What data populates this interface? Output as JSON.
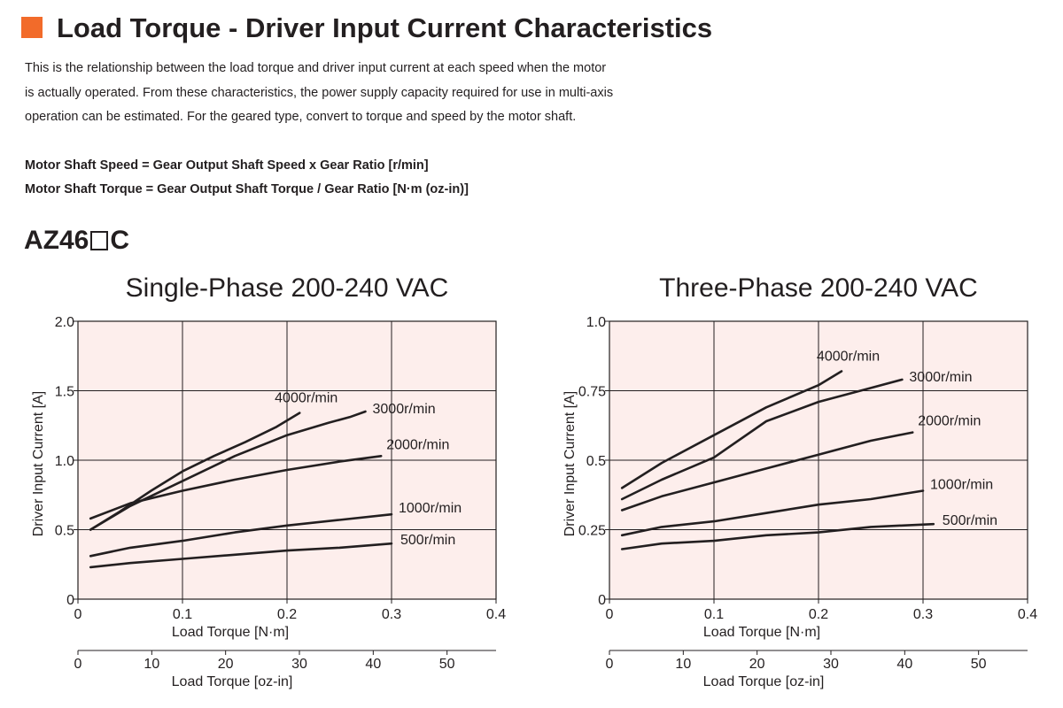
{
  "section": {
    "title": "Load Torque - Driver Input Current Characteristics",
    "accent_color": "#f26b2a"
  },
  "intro": {
    "lines": [
      "This is the relationship between the load torque and driver input current at each speed when the motor",
      "is actually operated. From these characteristics, the power supply capacity required for use in multi-axis",
      "operation can be estimated. For the geared type, convert to torque and speed by the motor shaft."
    ]
  },
  "formulas": [
    "Motor Shaft Speed = Gear Output Shaft Speed x Gear Ratio [r/min]",
    "Motor Shaft Torque = Gear Output Shaft Torque / Gear Ratio [N·m (oz-in)]"
  ],
  "model": {
    "prefix": "AZ46",
    "suffix": "C"
  },
  "colors": {
    "plot_background": "#fdeeec",
    "line": "#231f20"
  },
  "chart_data": [
    {
      "type": "line",
      "title": "Single-Phase 200-240 VAC",
      "xlabel": "Load Torque [N·m]",
      "ylabel": "Driver Input Current [A]",
      "xlim": [
        0,
        0.4
      ],
      "ylim": [
        0,
        2.0
      ],
      "xticks": [
        "0",
        "0.1",
        "0.2",
        "0.3",
        "0.4"
      ],
      "yticks": [
        "0",
        "0.5",
        "1.0",
        "1.5",
        "2.0"
      ],
      "secondary_xlabel": "Load Torque [oz-in]",
      "secondary_xlim": [
        0,
        56.64
      ],
      "secondary_xticks": [
        "0",
        "10",
        "20",
        "30",
        "40",
        "50"
      ],
      "grid": true,
      "legend": "inline labels at line ends",
      "series": [
        {
          "name": "4000r/min",
          "x": [
            0.012,
            0.04,
            0.07,
            0.1,
            0.13,
            0.16,
            0.19,
            0.212
          ],
          "y": [
            0.5,
            0.63,
            0.78,
            0.92,
            1.03,
            1.13,
            1.24,
            1.34
          ]
        },
        {
          "name": "3000r/min",
          "x": [
            0.012,
            0.05,
            0.1,
            0.15,
            0.2,
            0.24,
            0.26,
            0.275
          ],
          "y": [
            0.5,
            0.67,
            0.85,
            1.03,
            1.18,
            1.27,
            1.31,
            1.35
          ]
        },
        {
          "name": "2000r/min",
          "x": [
            0.012,
            0.05,
            0.1,
            0.15,
            0.2,
            0.25,
            0.29
          ],
          "y": [
            0.58,
            0.69,
            0.78,
            0.86,
            0.93,
            0.99,
            1.03
          ]
        },
        {
          "name": "1000r/min",
          "x": [
            0.012,
            0.05,
            0.1,
            0.15,
            0.2,
            0.25,
            0.3
          ],
          "y": [
            0.31,
            0.37,
            0.42,
            0.48,
            0.53,
            0.57,
            0.61
          ]
        },
        {
          "name": "500r/min",
          "x": [
            0.012,
            0.05,
            0.1,
            0.15,
            0.2,
            0.25,
            0.3
          ],
          "y": [
            0.23,
            0.26,
            0.29,
            0.32,
            0.35,
            0.37,
            0.4
          ]
        }
      ]
    },
    {
      "type": "line",
      "title": "Three-Phase 200-240 VAC",
      "xlabel": "Load Torque [N·m]",
      "ylabel": "Driver Input Current [A]",
      "xlim": [
        0,
        0.4
      ],
      "ylim": [
        0,
        1.0
      ],
      "xticks": [
        "0",
        "0.1",
        "0.2",
        "0.3",
        "0.4"
      ],
      "yticks": [
        "0",
        "0.25",
        "0.5",
        "0.75",
        "1.0"
      ],
      "secondary_xlabel": "Load Torque [oz-in]",
      "secondary_xlim": [
        0,
        56.64
      ],
      "secondary_xticks": [
        "0",
        "10",
        "20",
        "30",
        "40",
        "50"
      ],
      "grid": true,
      "legend": "inline labels at line ends",
      "series": [
        {
          "name": "4000r/min",
          "x": [
            0.012,
            0.05,
            0.1,
            0.15,
            0.2,
            0.222
          ],
          "y": [
            0.4,
            0.49,
            0.59,
            0.69,
            0.77,
            0.82
          ]
        },
        {
          "name": "3000r/min",
          "x": [
            0.012,
            0.05,
            0.1,
            0.15,
            0.2,
            0.25,
            0.28
          ],
          "y": [
            0.36,
            0.43,
            0.51,
            0.64,
            0.71,
            0.76,
            0.79
          ]
        },
        {
          "name": "2000r/min",
          "x": [
            0.012,
            0.05,
            0.1,
            0.15,
            0.2,
            0.25,
            0.29
          ],
          "y": [
            0.32,
            0.37,
            0.42,
            0.47,
            0.52,
            0.57,
            0.6
          ]
        },
        {
          "name": "1000r/min",
          "x": [
            0.012,
            0.05,
            0.1,
            0.15,
            0.2,
            0.25,
            0.3
          ],
          "y": [
            0.23,
            0.26,
            0.28,
            0.31,
            0.34,
            0.36,
            0.39
          ]
        },
        {
          "name": "500r/min",
          "x": [
            0.012,
            0.05,
            0.1,
            0.15,
            0.2,
            0.25,
            0.31
          ],
          "y": [
            0.18,
            0.2,
            0.21,
            0.23,
            0.24,
            0.26,
            0.27
          ]
        }
      ]
    }
  ]
}
